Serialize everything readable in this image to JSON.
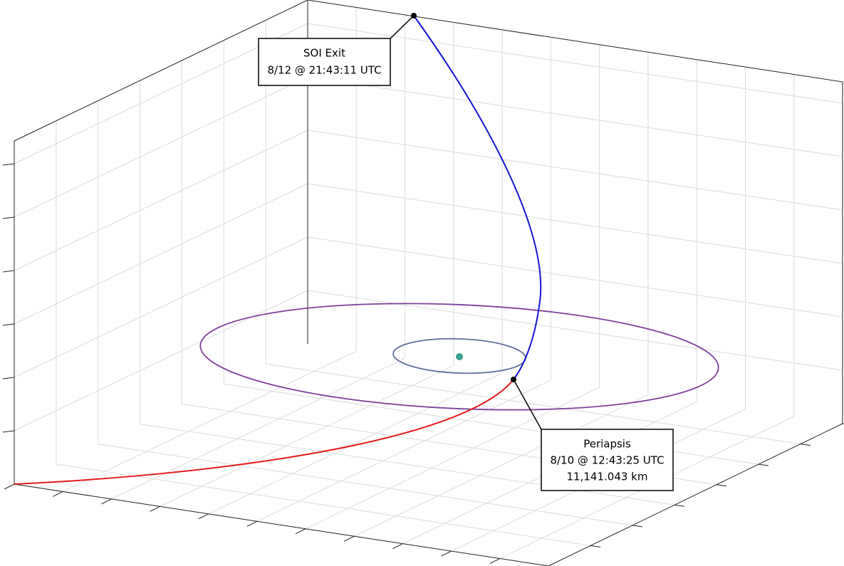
{
  "annotations": [
    {
      "lines": [
        "SOI Exit",
        "8/12 @ 21:43:11 UTC"
      ]
    },
    {
      "lines": [
        "Periapsis",
        "8/10 @ 12:43:25 UTC",
        "11,141.043 km"
      ]
    }
  ]
}
